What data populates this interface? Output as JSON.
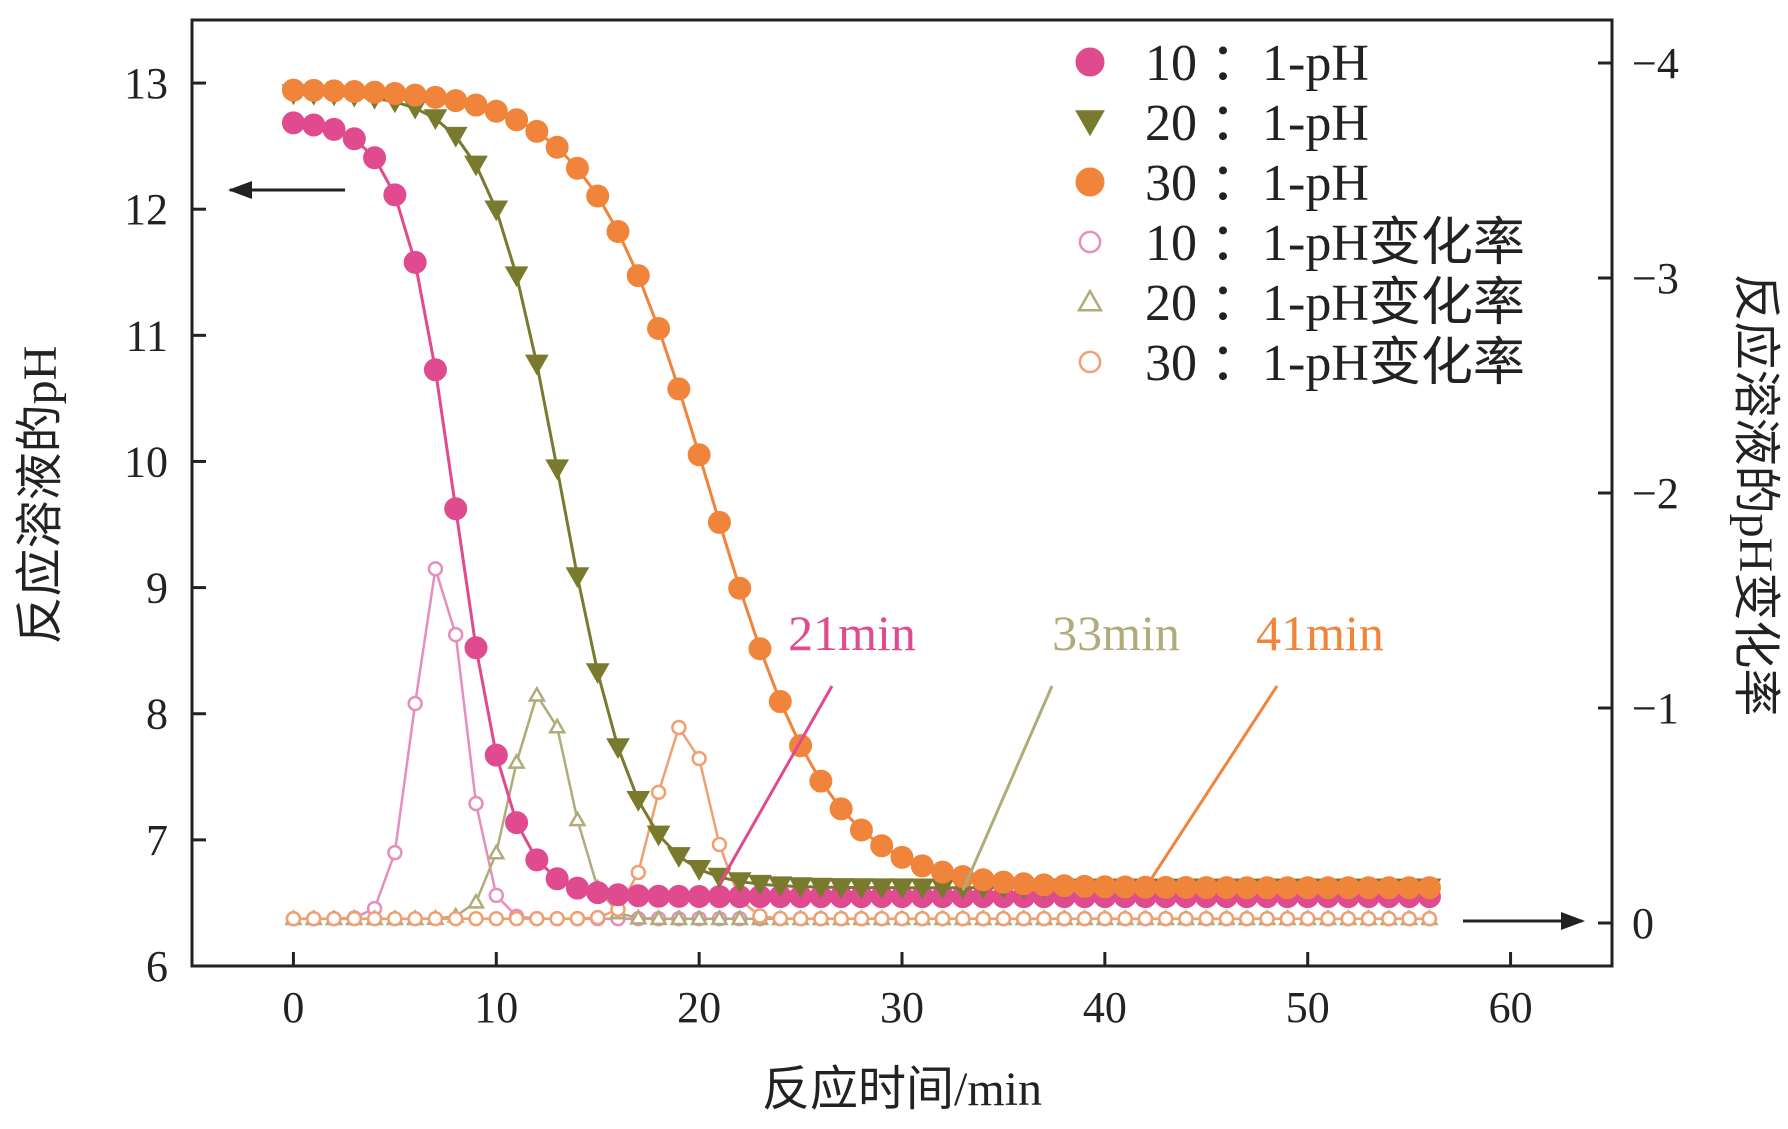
{
  "chart_data": {
    "type": "line",
    "xlabel": "反应时间/min",
    "ylabel_left": "反应溶液的pH",
    "ylabel_right": "反应溶液的pH变化率",
    "xlim": [
      -5,
      65
    ],
    "ylim_left": [
      6,
      13.5
    ],
    "ylim_right": [
      0.2,
      -4.2
    ],
    "x_ticks": [
      "0",
      "10",
      "20",
      "30",
      "40",
      "50",
      "60"
    ],
    "y_left_ticks": [
      "6",
      "7",
      "8",
      "9",
      "10",
      "11",
      "12",
      "13"
    ],
    "y_right_ticks": [
      "0",
      "−1",
      "−2",
      "−3",
      "−4"
    ],
    "series": [
      {
        "name": "10 ：1-pH",
        "axis": "left",
        "color": "#E04A8F",
        "marker": "circle-filled",
        "midpoint": 8.0,
        "steepness": 0.75,
        "pH_start": 12.7,
        "pH_end": 6.55,
        "x_start": 0,
        "x_end": 56,
        "step": 1
      },
      {
        "name": "20 ：1-pH",
        "axis": "left",
        "color": "#7A7A2E",
        "marker": "triangle-filled",
        "midpoint": 13.2,
        "steepness": 0.55,
        "pH_start": 12.92,
        "pH_end": 6.62,
        "x_start": 0,
        "x_end": 56,
        "step": 1
      },
      {
        "name": "30 ：1-pH",
        "axis": "left",
        "color": "#F0843A",
        "marker": "circle-filled",
        "midpoint": 20.5,
        "steepness": 0.34,
        "pH_start": 12.95,
        "pH_end": 6.62,
        "x_start": 0,
        "x_end": 56,
        "step": 1
      },
      {
        "name": "10 ：1-pH变化率",
        "axis": "right",
        "color": "#E58FBF",
        "marker": "circle-open",
        "peak_x": 7.2,
        "peak": -1.65,
        "width": 1.2,
        "x_start": 0,
        "x_end": 56,
        "step": 1
      },
      {
        "name": "20 ：1-pH变化率",
        "axis": "right",
        "color": "#B0AC7A",
        "marker": "triangle-open",
        "peak_x": 12.2,
        "peak": -1.05,
        "width": 1.4,
        "x_start": 0,
        "x_end": 56,
        "step": 1
      },
      {
        "name": "30 ：1-pH变化率",
        "axis": "right",
        "color": "#F0A070",
        "marker": "circle-open",
        "peak_x": 19.2,
        "peak": -0.9,
        "width": 1.3,
        "x_start": 0,
        "x_end": 56,
        "step": 1
      }
    ],
    "annotations": [
      {
        "text": "21min",
        "color": "#E04A8F",
        "x": 21,
        "y": 6.65
      },
      {
        "text": "33min",
        "color": "#B0AC7A",
        "x": 33,
        "y": 6.6
      },
      {
        "text": "41min",
        "color": "#F0843A",
        "x": 42,
        "y": 6.62
      }
    ],
    "arrows": [
      {
        "direction": "left",
        "axis": "left"
      },
      {
        "direction": "right",
        "axis": "right"
      }
    ]
  }
}
